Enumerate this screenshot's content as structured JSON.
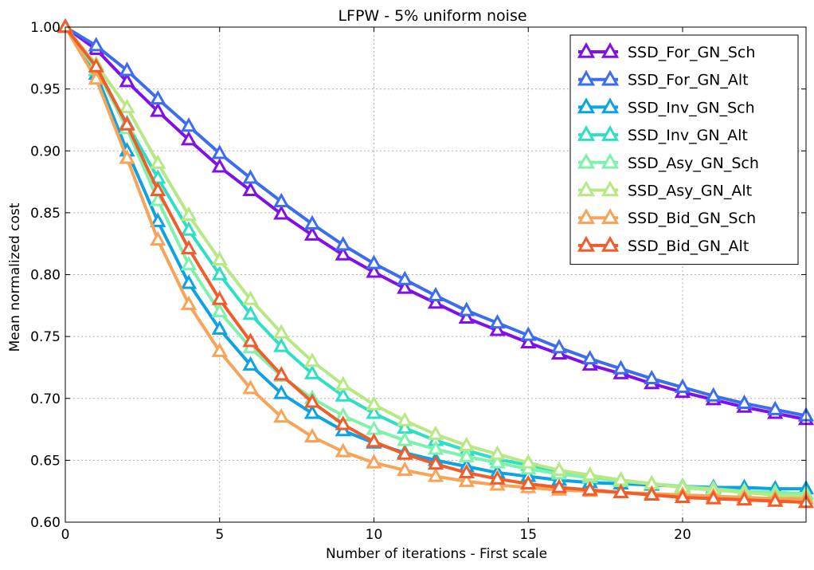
{
  "chart_data": {
    "type": "line",
    "title": "LFPW - 5% uniform noise",
    "xlabel": "Number of iterations - First scale",
    "ylabel": "Mean normalized cost",
    "xlim": [
      0,
      24
    ],
    "ylim": [
      0.6,
      1.0
    ],
    "xticks": [
      0,
      5,
      10,
      15,
      20
    ],
    "yticks": [
      0.6,
      0.65,
      0.7,
      0.75,
      0.8,
      0.85,
      0.9,
      0.95,
      1.0
    ],
    "xtick_labels": [
      "0",
      "5",
      "10",
      "15",
      "20"
    ],
    "ytick_labels": [
      "0.60",
      "0.65",
      "0.70",
      "0.75",
      "0.80",
      "0.85",
      "0.90",
      "0.95",
      "1.00"
    ],
    "grid": true,
    "legend_position": "top-right",
    "marker": "triangle-up",
    "x": [
      0,
      1,
      2,
      3,
      4,
      5,
      6,
      7,
      8,
      9,
      10,
      11,
      12,
      13,
      14,
      15,
      16,
      17,
      18,
      19,
      20,
      21,
      22,
      23,
      24
    ],
    "series": [
      {
        "name": "SSD_For_GN_Sch",
        "color": "#7f10e8",
        "values": [
          1.0,
          0.982,
          0.956,
          0.932,
          0.909,
          0.887,
          0.868,
          0.849,
          0.832,
          0.816,
          0.802,
          0.789,
          0.777,
          0.765,
          0.755,
          0.745,
          0.736,
          0.727,
          0.72,
          0.712,
          0.705,
          0.699,
          0.693,
          0.688,
          0.683
        ]
      },
      {
        "name": "SSD_For_GN_Alt",
        "color": "#3c6cf0",
        "values": [
          1.0,
          0.985,
          0.965,
          0.942,
          0.92,
          0.898,
          0.878,
          0.859,
          0.841,
          0.824,
          0.809,
          0.796,
          0.783,
          0.771,
          0.761,
          0.751,
          0.741,
          0.732,
          0.724,
          0.716,
          0.709,
          0.702,
          0.696,
          0.691,
          0.686
        ]
      },
      {
        "name": "SSD_Inv_GN_Sch",
        "color": "#0ca2e3",
        "values": [
          1.0,
          0.962,
          0.9,
          0.843,
          0.793,
          0.756,
          0.727,
          0.704,
          0.688,
          0.674,
          0.664,
          0.656,
          0.65,
          0.645,
          0.64,
          0.637,
          0.634,
          0.632,
          0.631,
          0.63,
          0.629,
          0.628,
          0.628,
          0.627,
          0.627
        ]
      },
      {
        "name": "SSD_Inv_GN_Alt",
        "color": "#2edfc6",
        "values": [
          1.0,
          0.965,
          0.922,
          0.878,
          0.836,
          0.8,
          0.768,
          0.742,
          0.72,
          0.702,
          0.688,
          0.676,
          0.666,
          0.658,
          0.651,
          0.646,
          0.641,
          0.637,
          0.634,
          0.631,
          0.628,
          0.626,
          0.625,
          0.624,
          0.623
        ]
      },
      {
        "name": "SSD_Asy_GN_Sch",
        "color": "#7ef2ab",
        "values": [
          1.0,
          0.966,
          0.918,
          0.86,
          0.808,
          0.77,
          0.741,
          0.718,
          0.7,
          0.686,
          0.675,
          0.666,
          0.659,
          0.653,
          0.648,
          0.643,
          0.639,
          0.636,
          0.633,
          0.631,
          0.629,
          0.627,
          0.625,
          0.624,
          0.623
        ]
      },
      {
        "name": "SSD_Asy_GN_Alt",
        "color": "#b6e884",
        "values": [
          1.0,
          0.97,
          0.935,
          0.89,
          0.848,
          0.812,
          0.78,
          0.753,
          0.73,
          0.711,
          0.695,
          0.682,
          0.671,
          0.662,
          0.655,
          0.648,
          0.642,
          0.638,
          0.634,
          0.631,
          0.628,
          0.626,
          0.624,
          0.622,
          0.621
        ]
      },
      {
        "name": "SSD_Bid_GN_Sch",
        "color": "#f7a458",
        "values": [
          1.0,
          0.958,
          0.894,
          0.828,
          0.776,
          0.738,
          0.708,
          0.685,
          0.669,
          0.657,
          0.648,
          0.642,
          0.637,
          0.633,
          0.63,
          0.628,
          0.626,
          0.625,
          0.624,
          0.623,
          0.622,
          0.621,
          0.62,
          0.619,
          0.619
        ]
      },
      {
        "name": "SSD_Bid_GN_Alt",
        "color": "#f05c2a",
        "values": [
          1.0,
          0.968,
          0.921,
          0.868,
          0.821,
          0.78,
          0.746,
          0.719,
          0.697,
          0.679,
          0.665,
          0.655,
          0.647,
          0.64,
          0.635,
          0.631,
          0.628,
          0.626,
          0.624,
          0.622,
          0.62,
          0.619,
          0.618,
          0.617,
          0.616
        ]
      }
    ]
  }
}
